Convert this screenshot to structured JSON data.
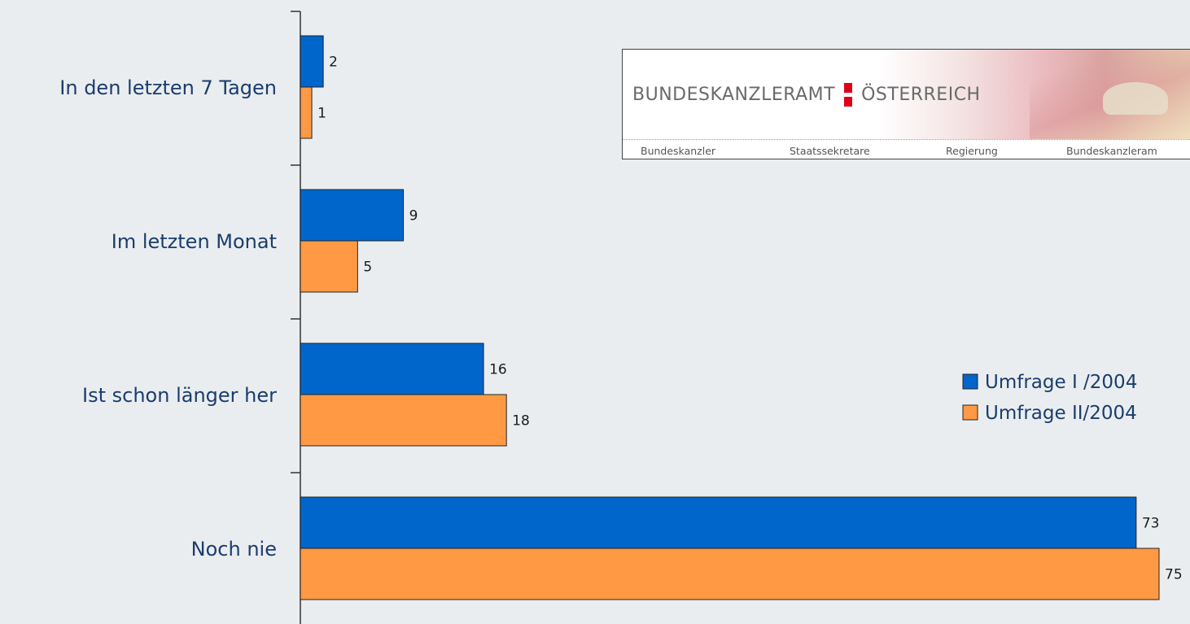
{
  "chart_data": {
    "type": "bar",
    "orientation": "horizontal",
    "categories": [
      "In den letzten 7 Tagen",
      "Im letzten Monat",
      "Ist schon länger her",
      "Noch nie"
    ],
    "series": [
      {
        "name": "Umfrage I /2004",
        "values": [
          2,
          9,
          16,
          73
        ],
        "color": "#0066cc"
      },
      {
        "name": "Umfrage II/2004",
        "values": [
          1,
          5,
          18,
          75
        ],
        "color": "#ff9944"
      }
    ],
    "xlim": [
      0,
      75
    ],
    "legend_position": "right",
    "grid": false
  },
  "inset": {
    "brand_left": "BUNDESKANZLERAMT",
    "brand_right": "ÖSTERREICH",
    "nav_items": [
      "Bundeskanzler",
      "Staatssekretare",
      "Regierung",
      "Bundeskanzleram"
    ]
  }
}
